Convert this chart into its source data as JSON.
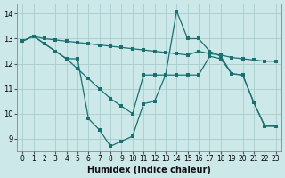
{
  "xlabel": "Humidex (Indice chaleur)",
  "bg_color": "#cce8e8",
  "grid_color": "#aacccc",
  "line_color": "#1a7070",
  "xlim": [
    -0.5,
    23.5
  ],
  "ylim": [
    8.5,
    14.4
  ],
  "yticks": [
    9,
    10,
    11,
    12,
    13,
    14
  ],
  "xticks": [
    0,
    1,
    2,
    3,
    4,
    5,
    6,
    7,
    8,
    9,
    10,
    11,
    12,
    13,
    14,
    15,
    16,
    17,
    18,
    19,
    20,
    21,
    22,
    23
  ],
  "line1": {
    "x": [
      0,
      1,
      2,
      3,
      4,
      5,
      6,
      7,
      8,
      9,
      10,
      11,
      12,
      13,
      14,
      15,
      16,
      17,
      18,
      19,
      20,
      21,
      22,
      23
    ],
    "y": [
      12.9,
      13.1,
      13.0,
      12.95,
      12.9,
      12.85,
      12.8,
      12.75,
      12.7,
      12.65,
      12.6,
      12.55,
      12.5,
      12.45,
      12.4,
      12.35,
      12.5,
      12.4,
      12.35,
      12.25,
      12.2,
      12.15,
      12.1,
      12.1
    ]
  },
  "line2": {
    "x": [
      0,
      1,
      2,
      3,
      4,
      5,
      6,
      7,
      8,
      9,
      10,
      11,
      12,
      13,
      14,
      15,
      16,
      17,
      18,
      19,
      20,
      21,
      22,
      23
    ],
    "y": [
      12.9,
      13.1,
      12.8,
      12.5,
      12.2,
      11.8,
      11.4,
      11.0,
      10.6,
      10.3,
      10.0,
      11.55,
      11.55,
      11.55,
      11.55,
      11.55,
      11.55,
      12.3,
      12.2,
      11.6,
      11.55,
      10.45,
      9.5,
      9.5
    ]
  },
  "line3": {
    "x": [
      0,
      1,
      2,
      3,
      4,
      5,
      6,
      7,
      8,
      9,
      10,
      11,
      12,
      13,
      14,
      15,
      16,
      17,
      18,
      19,
      20,
      21,
      22,
      23
    ],
    "y": [
      12.9,
      13.1,
      12.8,
      12.5,
      12.2,
      12.2,
      9.8,
      9.35,
      8.7,
      8.9,
      9.1,
      10.4,
      10.5,
      11.55,
      14.1,
      13.0,
      13.0,
      12.5,
      12.3,
      11.6,
      11.55,
      10.45,
      9.5,
      9.5
    ]
  }
}
